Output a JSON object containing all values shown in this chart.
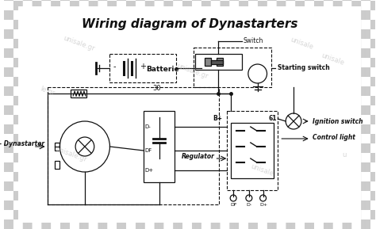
{
  "title": "Wiring diagram of Dynastarters",
  "title_fontsize": 11,
  "title_fontweight": "bold",
  "title_fontstyle": "italic",
  "bg_color": "#d0d0d0",
  "center_bg": "#ffffff",
  "line_color": "#111111",
  "text_color": "#111111",
  "watermark_color": "#bbbbbb",
  "labels": {
    "dynastarter": "- Dynastarter",
    "batterie": "Batterie",
    "switch": "Switch",
    "starting_switch": "Starting switch",
    "ignition_switch": "Ignition switch",
    "control_light": "Control light",
    "regulator": "Regulator",
    "num_30": "30",
    "num_61": "61",
    "bplus": "B+",
    "df_reg": "DF",
    "dminus_reg": "D-",
    "dplus_reg": "D+",
    "dminus_box": "D-",
    "df_box": "DF",
    "dplus_box": "D+"
  },
  "figsize": [
    4.74,
    2.89
  ],
  "dpi": 100
}
